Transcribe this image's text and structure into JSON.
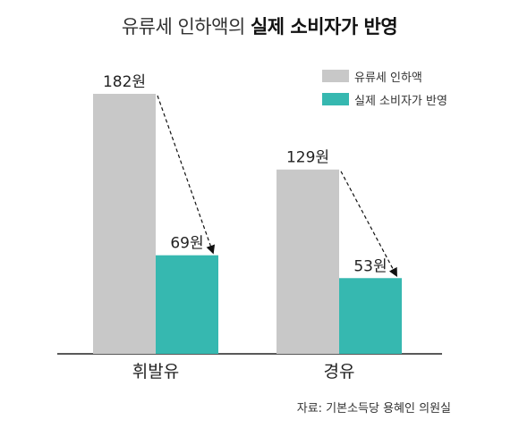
{
  "title": {
    "light": "유류세 인하액의",
    "bold": "실제 소비자가 반영"
  },
  "source": "자료: 기본소득당 용혜인 의원실",
  "colors": {
    "cut": "#c8c8c8",
    "reflected": "#36b8b0",
    "axis": "#222222"
  },
  "chart_data": {
    "type": "bar",
    "categories": [
      "휘발유",
      "경유"
    ],
    "series": [
      {
        "name": "유류세 인하액",
        "values": [
          182,
          129
        ],
        "labels": [
          "182원",
          "129원"
        ]
      },
      {
        "name": "실제 소비자가 반영",
        "values": [
          69,
          53
        ],
        "labels": [
          "69원",
          "53원"
        ]
      }
    ],
    "ylim": [
      0,
      210
    ],
    "legend": "top-right",
    "grid": false
  }
}
